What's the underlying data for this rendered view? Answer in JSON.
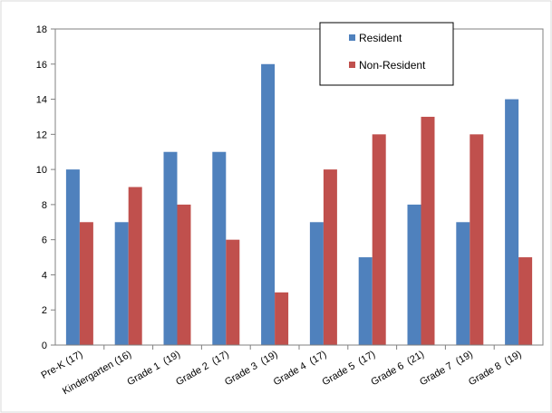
{
  "chart_data": {
    "type": "bar",
    "title": "",
    "xlabel": "",
    "ylabel": "",
    "ylim": [
      0,
      18
    ],
    "yticks": [
      "0",
      "2",
      "4",
      "6",
      "8",
      "10",
      "12",
      "14",
      "16",
      "18"
    ],
    "grid": false,
    "legend_position": "top-right",
    "categories": [
      "Pre-K (17)",
      "Kindergarten (16)",
      "Grade 1  (19)",
      "Grade 2  (17)",
      "Grade 3  (19)",
      "Grade 4  (17)",
      "Grade 5  (17)",
      "Grade 6  (21)",
      "Grade 7  (19)",
      "Grade 8  (19)"
    ],
    "series": [
      {
        "name": "Resident",
        "color": "#4f81bd",
        "values": [
          10,
          7,
          11,
          11,
          16,
          7,
          5,
          8,
          7,
          14
        ]
      },
      {
        "name": "Non-Resident",
        "color": "#c0504d",
        "values": [
          7,
          9,
          8,
          6,
          3,
          10,
          12,
          13,
          12,
          5
        ]
      }
    ]
  }
}
